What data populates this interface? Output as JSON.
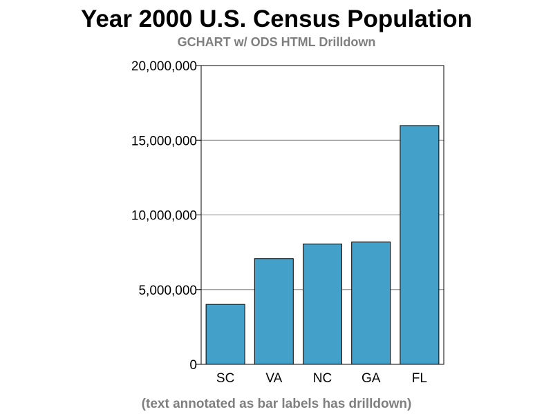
{
  "chart_data": {
    "type": "bar",
    "title": "Year 2000 U.S. Census Population",
    "subtitle": "GCHART w/ ODS HTML Drilldown",
    "footnote": "(text annotated as bar labels has drilldown)",
    "categories": [
      "SC",
      "VA",
      "NC",
      "GA",
      "FL"
    ],
    "values": [
      4012012,
      7078515,
      8049313,
      8186453,
      15982378
    ],
    "ylim": [
      0,
      20000000
    ],
    "yticks": [
      0,
      5000000,
      10000000,
      15000000,
      20000000
    ],
    "ytick_labels": [
      "0",
      "5,000,000",
      "10,000,000",
      "15,000,000",
      "20,000,000"
    ],
    "grid": true,
    "bar_color": "#42a0c9",
    "bar_edge_color": "#000000",
    "grid_color": "#808080"
  }
}
